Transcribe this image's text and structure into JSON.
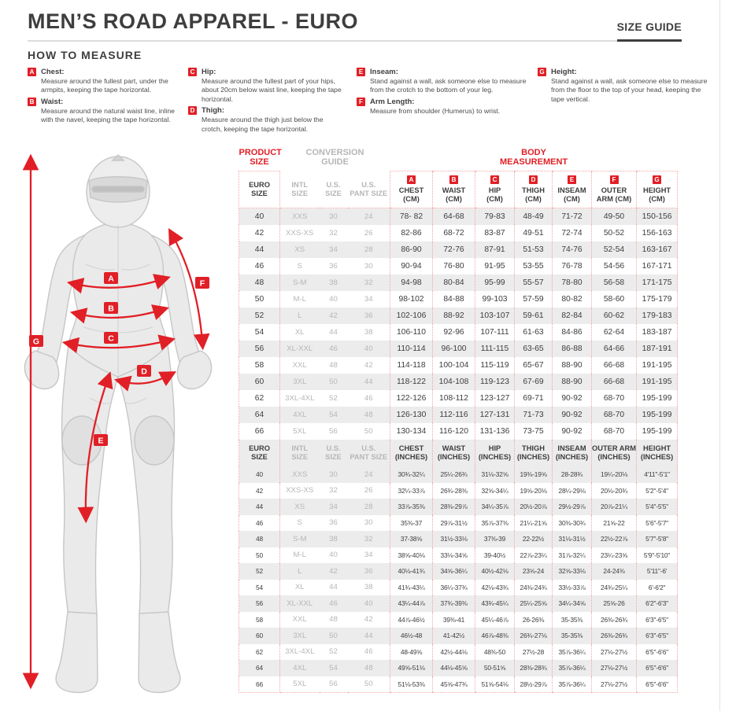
{
  "colors": {
    "accent_red": "#e11f26",
    "row_stripe": "#ececec",
    "conversion_gray": "#b6b6b6",
    "text_dark": "#3d3d3d"
  },
  "header": {
    "title": "MEN’S ROAD APPAREL - EURO",
    "size_guide": "SIZE GUIDE"
  },
  "how_to_measure": {
    "heading": "HOW TO MEASURE",
    "columns": [
      [
        {
          "letter": "A",
          "title": "Chest:",
          "text": "Measure around the fullest part, under the armpits, keeping the tape horizontal."
        },
        {
          "letter": "B",
          "title": "Waist:",
          "text": "Measure around the natural waist line, inline with the navel, keeping the tape horizontal."
        }
      ],
      [
        {
          "letter": "C",
          "title": "Hip:",
          "text": "Measure around the fullest part of your hips, about 20cm below waist line, keeping the tape horizontal."
        },
        {
          "letter": "D",
          "title": "Thigh:",
          "text": "Measure around the thigh just below the crotch, keeping the tape horizontal."
        }
      ],
      [
        {
          "letter": "E",
          "title": "Inseam:",
          "text": "Stand against a wall, ask someone else to measure from the crotch to the bottom of your leg."
        },
        {
          "letter": "F",
          "title": "Arm Length:",
          "text": "Measure from shoulder (Humerus) to wrist."
        }
      ],
      [
        {
          "letter": "G",
          "title": "Height:",
          "text": "Stand against a wall, ask someone else to measure from the floor to the top of your head, keeping the tape vertical."
        }
      ]
    ]
  },
  "figure": {
    "labels": [
      "A",
      "B",
      "C",
      "D",
      "E",
      "F",
      "G"
    ]
  },
  "table": {
    "groups": {
      "product": "PRODUCT\nSIZE",
      "conversion": "CONVERSION\nGUIDE",
      "body": "BODY\nMEASUREMENT"
    },
    "cm_header": [
      {
        "label": "EURO\nSIZE"
      },
      {
        "label": "INTL\nSIZE"
      },
      {
        "label": "U.S.\nSIZE"
      },
      {
        "label": "U.S.\nPANT SIZE"
      },
      {
        "letter": "A",
        "label": "CHEST\n(CM)"
      },
      {
        "letter": "B",
        "label": "WAIST\n(CM)"
      },
      {
        "letter": "C",
        "label": "HIP\n(CM)"
      },
      {
        "letter": "D",
        "label": "THIGH\n(CM)"
      },
      {
        "letter": "E",
        "label": "INSEAM\n(CM)"
      },
      {
        "letter": "F",
        "label": "OUTER\nARM (CM)"
      },
      {
        "letter": "G",
        "label": "HEIGHT\n(CM)"
      }
    ],
    "inch_header": [
      {
        "label": "EURO\nSIZE"
      },
      {
        "label": "INTL\nSIZE"
      },
      {
        "label": "U.S.\nSIZE"
      },
      {
        "label": "U.S.\nPANT SIZE"
      },
      {
        "label": "CHEST\n(INCHES)"
      },
      {
        "label": "WAIST\n(INCHES)"
      },
      {
        "label": "HIP\n(INCHES)"
      },
      {
        "label": "THIGH\n(INCHES)"
      },
      {
        "label": "INSEAM\n(INCHES)"
      },
      {
        "label": "OUTER ARM\n(INCHES)"
      },
      {
        "label": "HEIGHT\n(INCHES)"
      }
    ],
    "cm_rows": [
      [
        "40",
        "XXS",
        "30",
        "24",
        "78- 82",
        "64-68",
        "79-83",
        "48-49",
        "71-72",
        "49-50",
        "150-156"
      ],
      [
        "42",
        "XXS-XS",
        "32",
        "26",
        "82-86",
        "68-72",
        "83-87",
        "49-51",
        "72-74",
        "50-52",
        "156-163"
      ],
      [
        "44",
        "XS",
        "34",
        "28",
        "86-90",
        "72-76",
        "87-91",
        "51-53",
        "74-76",
        "52-54",
        "163-167"
      ],
      [
        "46",
        "S",
        "36",
        "30",
        "90-94",
        "76-80",
        "91-95",
        "53-55",
        "76-78",
        "54-56",
        "167-171"
      ],
      [
        "48",
        "S-M",
        "38",
        "32",
        "94-98",
        "80-84",
        "95-99",
        "55-57",
        "78-80",
        "56-58",
        "171-175"
      ],
      [
        "50",
        "M-L",
        "40",
        "34",
        "98-102",
        "84-88",
        "99-103",
        "57-59",
        "80-82",
        "58-60",
        "175-179"
      ],
      [
        "52",
        "L",
        "42",
        "36",
        "102-106",
        "88-92",
        "103-107",
        "59-61",
        "82-84",
        "60-62",
        "179-183"
      ],
      [
        "54",
        "XL",
        "44",
        "38",
        "106-110",
        "92-96",
        "107-111",
        "61-63",
        "84-86",
        "62-64",
        "183-187"
      ],
      [
        "56",
        "XL-XXL",
        "46",
        "40",
        "110-114",
        "96-100",
        "111-115",
        "63-65",
        "86-88",
        "64-66",
        "187-191"
      ],
      [
        "58",
        "XXL",
        "48",
        "42",
        "114-118",
        "100-104",
        "115-119",
        "65-67",
        "88-90",
        "66-68",
        "191-195"
      ],
      [
        "60",
        "3XL",
        "50",
        "44",
        "118-122",
        "104-108",
        "119-123",
        "67-69",
        "88-90",
        "66-68",
        "191-195"
      ],
      [
        "62",
        "3XL-4XL",
        "52",
        "46",
        "122-126",
        "108-112",
        "123-127",
        "69-71",
        "90-92",
        "68-70",
        "195-199"
      ],
      [
        "64",
        "4XL",
        "54",
        "48",
        "126-130",
        "112-116",
        "127-131",
        "71-73",
        "90-92",
        "68-70",
        "195-199"
      ],
      [
        "66",
        "5XL",
        "56",
        "50",
        "130-134",
        "116-120",
        "131-136",
        "73-75",
        "90-92",
        "68-70",
        "195-199"
      ]
    ],
    "inch_rows": [
      [
        "40",
        "XXS",
        "30",
        "24",
        "30¾-32¼",
        "25¼-26¾",
        "31⅛-32⅝",
        "19⅜-19⅝",
        "28-28¾",
        "19¼-20⅛",
        "4'11\"-5'1\""
      ],
      [
        "42",
        "XXS-XS",
        "32",
        "26",
        "32¼-33⅞",
        "26¾-28⅜",
        "32⅝-34¼",
        "19⅝-20⅛",
        "28¼-29⅛",
        "20⅛-20¾",
        "5'2\"-5'4\""
      ],
      [
        "44",
        "XS",
        "34",
        "28",
        "33⅞-35⅜",
        "28⅜-29⅞",
        "34¼-35⅞",
        "20½-20⅞",
        "29½-29⅞",
        "20⅞-21¼",
        "5'4\"-5'5\""
      ],
      [
        "46",
        "S",
        "36",
        "30",
        "35⅜-37",
        "29⅞-31½",
        "35⅞-37⅜",
        "21¼-21⅝",
        "30⅜-30¾",
        "21⅝-22",
        "5'6\"-5'7\""
      ],
      [
        "48",
        "S-M",
        "38",
        "32",
        "37-38⅝",
        "31½-33⅛",
        "37⅜-39",
        "22-22½",
        "31⅛-31½",
        "22½-22⅞",
        "5'7\"-5'8\""
      ],
      [
        "50",
        "M-L",
        "40",
        "34",
        "38⅝-40⅛",
        "33⅛-34⅝",
        "39-40½",
        "22⅞-23¼",
        "31⅞-32¼",
        "23¼-23⅝",
        "5'9\"-5'10\""
      ],
      [
        "52",
        "L",
        "42",
        "36",
        "40⅛-41¾",
        "34⅝-36¼",
        "40½-42⅛",
        "23⅝-24",
        "32⅝-33⅛",
        "24-24⅜",
        "5'11\"-6'"
      ],
      [
        "54",
        "XL",
        "44",
        "38",
        "41¾-43¼",
        "36¼-37¾",
        "42⅛-43¾",
        "24⅜-24¾",
        "33½-33⅞",
        "24¾-25¼",
        "6'-6'2\""
      ],
      [
        "56",
        "XL-XXL",
        "46",
        "40",
        "43¼-44⅞",
        "37¾-39⅜",
        "43¾-45¼",
        "25¼-25⅝",
        "34¼-34⅝",
        "25⅝-26",
        "6'2\"-6'3\""
      ],
      [
        "58",
        "XXL",
        "48",
        "42",
        "44⅞-46½",
        "39⅜-41",
        "45¼-46⅞",
        "26-26⅜",
        "35-35⅜",
        "26⅜-26¾",
        "6'3\"-6'5\""
      ],
      [
        "60",
        "3XL",
        "50",
        "44",
        "46½-48",
        "41-42½",
        "46⅞-48⅜",
        "26¾-27⅛",
        "35-35⅜",
        "26⅜-26¾",
        "6'3\"-6'5\""
      ],
      [
        "62",
        "3XL-4XL",
        "52",
        "46",
        "48-49⅝",
        "42½-44⅛",
        "48⅜-50",
        "27½-28",
        "35⅞-36¼",
        "27⅛-27½",
        "6'5\"-6'6\""
      ],
      [
        "64",
        "4XL",
        "54",
        "48",
        "49⅝-51⅛",
        "44⅛-45⅝",
        "50-51⅝",
        "28⅜-28¾",
        "35⅞-36¼",
        "27⅛-27½",
        "6'5\"-6'6\""
      ],
      [
        "66",
        "5XL",
        "56",
        "50",
        "51⅛-53⅜",
        "45⅝-47¾",
        "51⅝-54⅛",
        "28½-29⅞",
        "35⅞-36¼",
        "27⅛-27½",
        "6'5\"-6'6\""
      ]
    ]
  }
}
